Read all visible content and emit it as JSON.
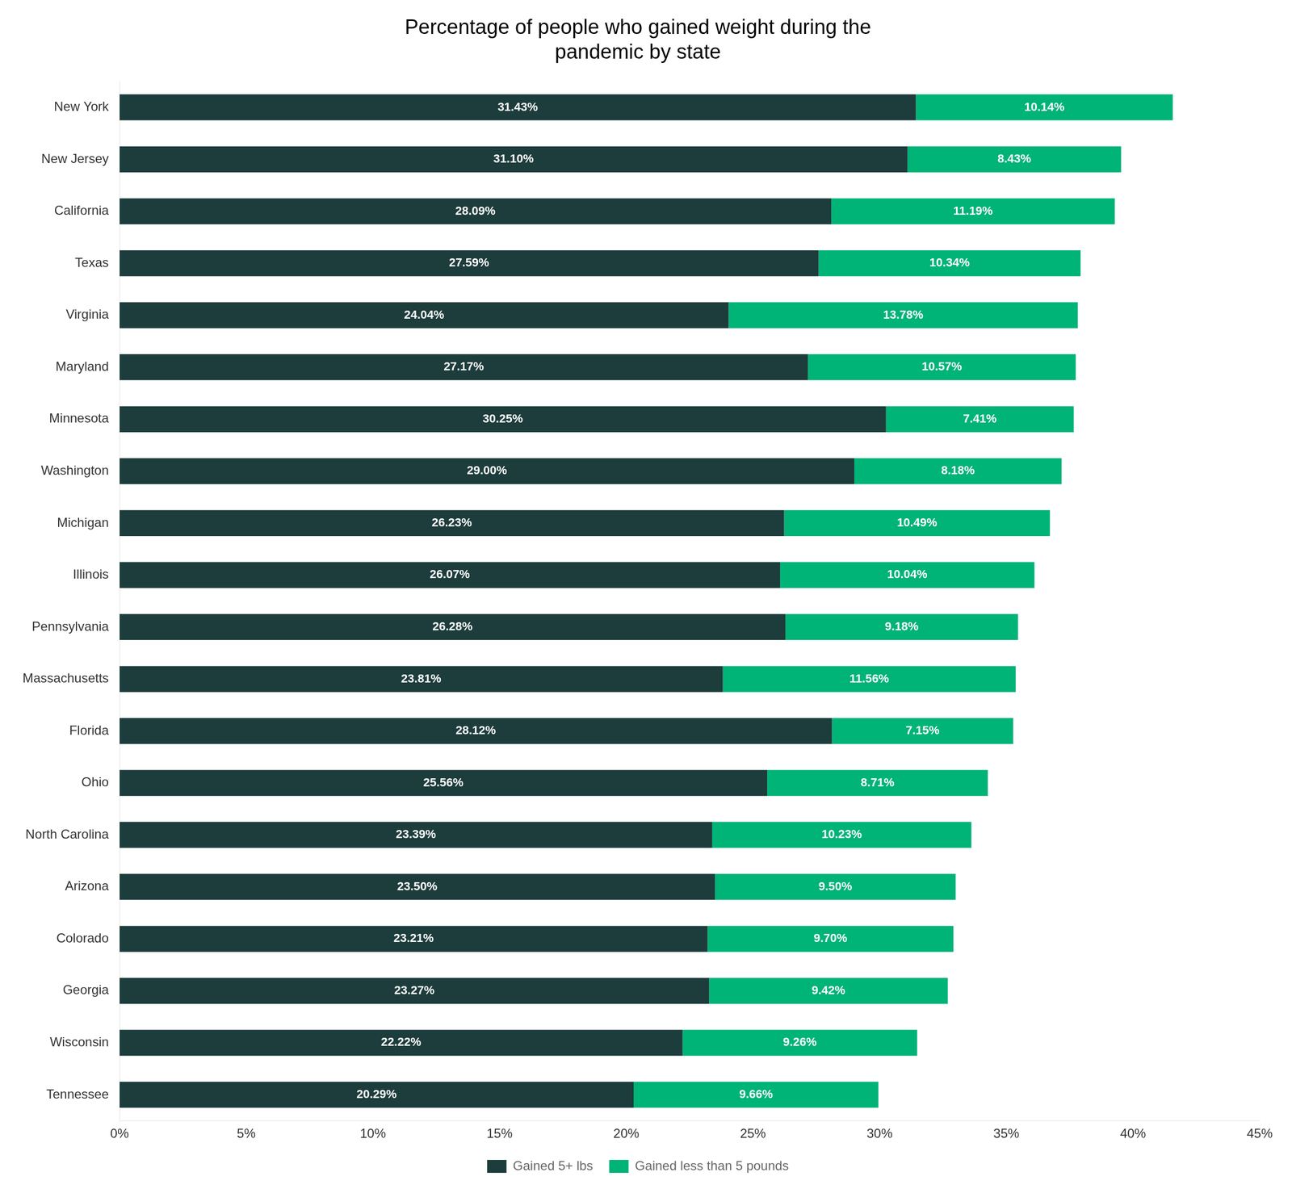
{
  "chart_data": {
    "type": "bar",
    "orientation": "horizontal",
    "stacked": true,
    "title": "Percentage of people who gained weight during the\npandemic by state",
    "categories": [
      "New York",
      "New Jersey",
      "California",
      "Texas",
      "Virginia",
      "Maryland",
      "Minnesota",
      "Washington",
      "Michigan",
      "Illinois",
      "Pennsylvania",
      "Massachusetts",
      "Florida",
      "Ohio",
      "North Carolina",
      "Arizona",
      "Colorado",
      "Georgia",
      "Wisconsin",
      "Tennessee"
    ],
    "series": [
      {
        "name": "Gained 5+ lbs",
        "color": "#1d3c3c",
        "values": [
          31.43,
          31.1,
          28.09,
          27.59,
          24.04,
          27.17,
          30.25,
          29.0,
          26.23,
          26.07,
          26.28,
          23.81,
          28.12,
          25.56,
          23.39,
          23.5,
          23.21,
          23.27,
          22.22,
          20.29
        ],
        "value_labels": [
          "31.43%",
          "31.10%",
          "28.09%",
          "27.59%",
          "24.04%",
          "27.17%",
          "30.25%",
          "29.00%",
          "26.23%",
          "26.07%",
          "26.28%",
          "23.81%",
          "28.12%",
          "25.56%",
          "23.39%",
          "23.50%",
          "23.21%",
          "23.27%",
          "22.22%",
          "20.29%"
        ]
      },
      {
        "name": "Gained less than 5 pounds",
        "color": "#00b377",
        "values": [
          10.14,
          8.43,
          11.19,
          10.34,
          13.78,
          10.57,
          7.41,
          8.18,
          10.49,
          10.04,
          9.18,
          11.56,
          7.15,
          8.71,
          10.23,
          9.5,
          9.7,
          9.42,
          9.26,
          9.66
        ],
        "value_labels": [
          "10.14%",
          "8.43%",
          "11.19%",
          "10.34%",
          "13.78%",
          "10.57%",
          "7.41%",
          "8.18%",
          "10.49%",
          "10.04%",
          "9.18%",
          "11.56%",
          "7.15%",
          "8.71%",
          "10.23%",
          "9.50%",
          "9.70%",
          "9.42%",
          "9.26%",
          "9.66%"
        ]
      }
    ],
    "xlim": [
      0,
      45
    ],
    "xticks": [
      {
        "value": 0,
        "label": "0%"
      },
      {
        "value": 5,
        "label": "5%"
      },
      {
        "value": 10,
        "label": "10%"
      },
      {
        "value": 15,
        "label": "15%"
      },
      {
        "value": 20,
        "label": "20%"
      },
      {
        "value": 25,
        "label": "25%"
      },
      {
        "value": 30,
        "label": "30%"
      },
      {
        "value": 35,
        "label": "35%"
      },
      {
        "value": 40,
        "label": "40%"
      },
      {
        "value": 45,
        "label": "45%"
      }
    ],
    "grid": false,
    "legend": "bottom",
    "data_labels": true
  }
}
